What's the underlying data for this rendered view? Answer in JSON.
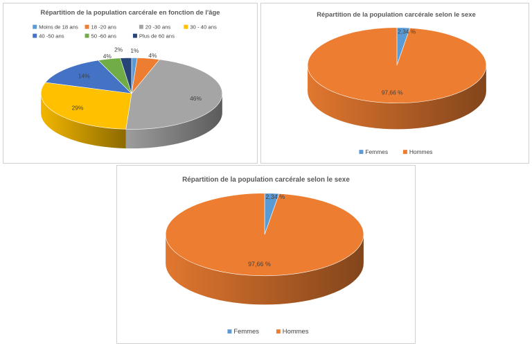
{
  "chart_data": [
    {
      "type": "pie",
      "variant": "3d",
      "title": "Répartition de la population carcérale en fonction de l'âge",
      "legend_position": "top",
      "labels": [
        "Moins de 18 ans",
        "18 -20 ans",
        "20 -30 ans",
        "30 - 40 ans",
        "40 -50 ans",
        "50 -60 ans",
        "Plus de 60 ans"
      ],
      "values": [
        1,
        4,
        46,
        29,
        14,
        4,
        2
      ],
      "display_labels": [
        "1%",
        "4%",
        "46%",
        "29%",
        "14%",
        "4%",
        "2%"
      ],
      "colors": [
        "#5b9bd5",
        "#ed7d31",
        "#a5a5a5",
        "#ffc000",
        "#4472c4",
        "#70ad47",
        "#264478"
      ]
    },
    {
      "type": "pie",
      "variant": "3d",
      "title": "Répartition de la population carcérale selon le sexe",
      "legend_position": "bottom",
      "labels": [
        "Femmes",
        "Hommes"
      ],
      "values": [
        2.34,
        97.66
      ],
      "display_labels": [
        "2,34 %",
        "97,66 %"
      ],
      "colors": [
        "#5b9bd5",
        "#ed7d31"
      ]
    },
    {
      "type": "pie",
      "variant": "3d",
      "title": "Répartition de la population carcérale selon le sexe",
      "legend_position": "bottom",
      "labels": [
        "Femmes",
        "Hommes"
      ],
      "values": [
        2.34,
        97.66
      ],
      "display_labels": [
        "2,34 %",
        "97,66 %"
      ],
      "colors": [
        "#5b9bd5",
        "#ed7d31"
      ]
    }
  ]
}
